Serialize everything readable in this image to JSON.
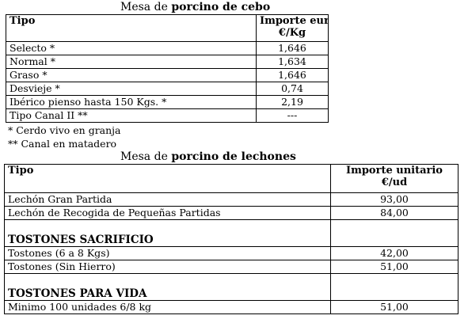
{
  "cebo": {
    "title_prefix": "Mesa de",
    "title_bold": "porcino de cebo",
    "header": {
      "col1": "Tipo",
      "col2_line1": "Importe euros",
      "col2_line2": "€/Kg"
    },
    "rows": [
      {
        "tipo": "Selecto *",
        "importe": "1,646"
      },
      {
        "tipo": "Normal *",
        "importe": "1,634"
      },
      {
        "tipo": "Graso *",
        "importe": "1,646"
      },
      {
        "tipo": "Desvieje *",
        "importe": "0,74"
      },
      {
        "tipo": "Ibérico pienso hasta 150 Kgs. *",
        "importe": "2,19"
      },
      {
        "tipo": "Tipo Canal II **",
        "importe": "---"
      }
    ],
    "notes": [
      "* Cerdo vivo en granja",
      "** Canal en matadero"
    ]
  },
  "lechones": {
    "title_prefix": "Mesa de",
    "title_bold": "porcino de lechones",
    "header": {
      "col1": "Tipo",
      "col2_line1": "Importe unitario",
      "col2_line2": "€/ud"
    },
    "rows": [
      {
        "tipo": "Lechón Gran Partida",
        "importe": "93,00"
      },
      {
        "tipo": "Lechón de Recogida de Pequeñas Partidas",
        "importe": "84,00"
      }
    ],
    "section_sacrificio": "TOSTONES SACRIFICIO",
    "sacrificio_rows": [
      {
        "tipo": "Tostones (6 a 8 Kgs)",
        "importe": "42,00"
      },
      {
        "tipo": "Tostones  (Sin Hierro)",
        "importe": "51,00"
      }
    ],
    "section_vida": "TOSTONES PARA VIDA",
    "vida_rows": [
      {
        "tipo": "Minimo 100 unidades 6/8 kg",
        "importe": "51,00"
      }
    ]
  }
}
